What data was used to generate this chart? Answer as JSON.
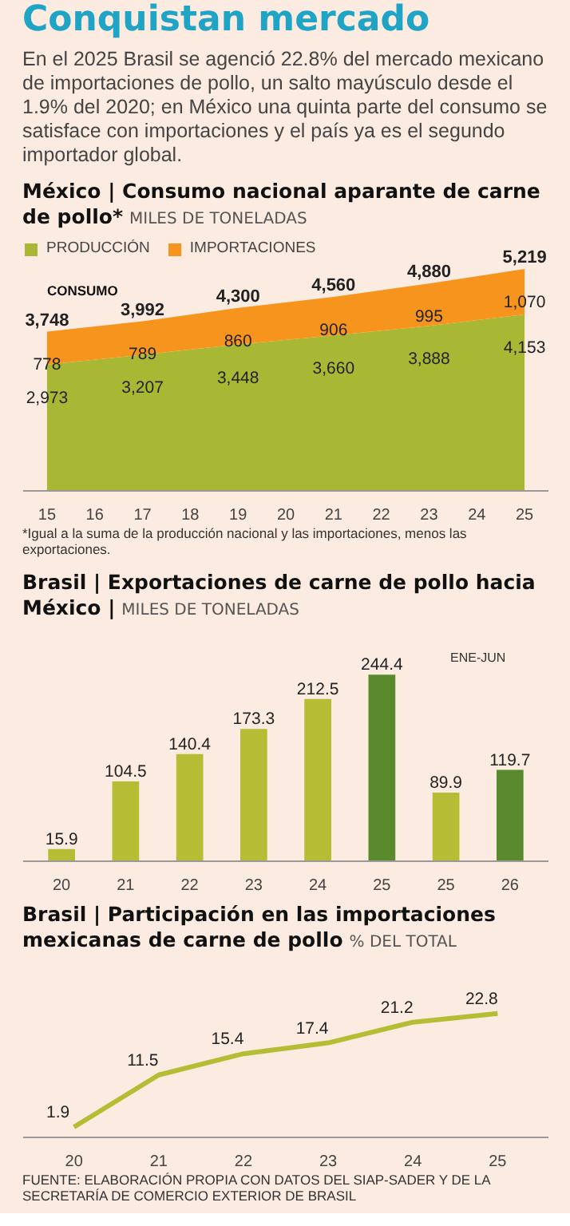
{
  "chart_data": [
    {
      "type": "other",
      "title": "Conquistan mercado",
      "subtitle": "En el 2025 Brasil se agenció 22.8% del mercado mexicano de importaciones de pollo, un salto mayúsculo desde el 1.9% del 2020; en México una quinta parte del consumo se satisface con importaciones y el país ya es el segundo importador global."
    },
    {
      "type": "area",
      "title": "México | Consumo nacional aparante de carne de pollo*",
      "subtitle": "MILES DE TONELADAS",
      "stacked": true,
      "legend": "top left",
      "tick_labels": "x",
      "x": [
        15,
        17,
        19,
        21,
        23,
        25
      ],
      "xlim": [
        14.5,
        25.5
      ],
      "xticks": [
        15,
        16,
        17,
        18,
        19,
        20,
        21,
        22,
        23,
        24,
        25
      ],
      "series": [
        {
          "name": "PRODUCCIÓN",
          "color": "#a9b834",
          "values": [
            2973,
            3207,
            3448,
            3660,
            3888,
            4153
          ],
          "value_labels": [
            "2,973",
            "3,207",
            "3,448",
            "3,660",
            "3,888",
            "4,153"
          ]
        },
        {
          "name": "IMPORTACIONES",
          "color": "#f7941d",
          "values": [
            778,
            789,
            860,
            906,
            995,
            1070
          ],
          "value_labels": [
            "778",
            "789",
            "860",
            "906",
            "995",
            "1,070"
          ]
        }
      ],
      "annotations": [
        "CONSUMO",
        {
          "text": "3,748",
          "x": 15,
          "y": 3748
        },
        {
          "text": "3,992",
          "x": 17,
          "y": 3992
        },
        {
          "text": "4,300",
          "x": 19,
          "y": 4300
        },
        {
          "text": "4,560",
          "x": 21,
          "y": 4560
        },
        {
          "text": "4,880",
          "x": 23,
          "y": 4880
        },
        {
          "text": "5,219",
          "x": 25,
          "y": 5219
        },
        "*Igual a la suma de la producción nacional y las importaciones, menos las exportaciones."
      ]
    },
    {
      "type": "bar",
      "title": "Brasil | Exportaciones de carne de pollo hacia México |",
      "subtitle": "MILES DE TONELADAS",
      "tick_labels": "x",
      "categories": [
        "20",
        "21",
        "22",
        "23",
        "24",
        "25",
        "25",
        "26"
      ],
      "values": [
        15.9,
        104.5,
        140.4,
        173.3,
        212.5,
        244.4,
        89.9,
        119.7
      ],
      "colors": [
        "#b5bd34",
        "#b5bd34",
        "#b5bd34",
        "#b5bd34",
        "#b5bd34",
        "#5b8a2e",
        "#b5bd34",
        "#5b8a2e"
      ],
      "value_labels": [
        "15.9",
        "104.5",
        "140.4",
        "173.3",
        "212.5",
        "244.4",
        "89.9",
        "119.7"
      ],
      "annotations": [
        "ENE-JUN"
      ]
    },
    {
      "type": "line",
      "title": "Brasil | Participación en las importaciones mexicanas de carne de pollo",
      "subtitle": "% DEL TOTAL",
      "tick_labels": "x",
      "categories": [
        "20",
        "21",
        "22",
        "23",
        "24",
        "25"
      ],
      "series": [
        {
          "color": "#b5bd34",
          "values": [
            1.9,
            11.5,
            15.4,
            17.4,
            21.2,
            22.8
          ],
          "value_labels": [
            "1.9",
            "11.5",
            "15.4",
            "17.4",
            "21.2",
            "22.8"
          ]
        }
      ],
      "annotations": [
        "FUENTE: ELABORACIÓN PROPIA CON DATOS DEL SIAP-SADER Y DE LA SECRETARÍA DE COMERCIO EXTERIOR DE BRASIL"
      ]
    }
  ]
}
